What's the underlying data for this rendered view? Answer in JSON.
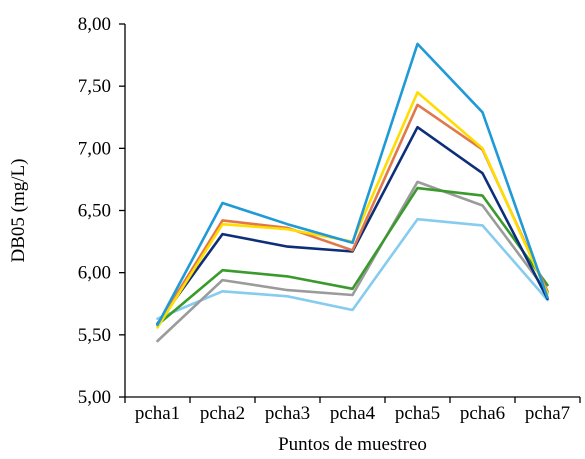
{
  "chart_data": {
    "type": "line",
    "title": "",
    "xlabel": "Puntos de muestreo",
    "ylabel": "DB05 (mg/L)",
    "categories": [
      "pcha1",
      "pcha2",
      "pcha3",
      "pcha4",
      "pcha5",
      "pcha6",
      "pcha7"
    ],
    "ylim": [
      5.0,
      8.0
    ],
    "yticks": [
      5.0,
      5.5,
      6.0,
      6.5,
      7.0,
      7.5,
      8.0
    ],
    "ytick_labels": [
      "5,00",
      "5,50",
      "6,00",
      "6,50",
      "7,00",
      "7,50",
      "8,00"
    ],
    "grid": false,
    "legend": "none",
    "series": [
      {
        "color": "#1f9ad6",
        "values": [
          5.58,
          6.56,
          6.39,
          6.24,
          7.84,
          7.29,
          5.8
        ]
      },
      {
        "color": "#ffdd00",
        "values": [
          5.56,
          6.39,
          6.35,
          6.25,
          7.45,
          7.0,
          5.83
        ]
      },
      {
        "color": "#e0784a",
        "values": [
          5.58,
          6.42,
          6.36,
          6.18,
          7.35,
          6.99,
          5.85
        ]
      },
      {
        "color": "#0d2f7a",
        "values": [
          5.59,
          6.31,
          6.21,
          6.17,
          7.17,
          6.8,
          5.79
        ]
      },
      {
        "color": "#3a9a2c",
        "values": [
          5.58,
          6.02,
          5.97,
          5.87,
          6.68,
          6.62,
          5.9
        ]
      },
      {
        "color": "#9b9b9b",
        "values": [
          5.45,
          5.94,
          5.86,
          5.82,
          6.73,
          6.54,
          5.84
        ]
      },
      {
        "color": "#86ccee",
        "values": [
          5.63,
          5.85,
          5.81,
          5.7,
          6.43,
          6.38,
          5.78
        ]
      }
    ]
  }
}
